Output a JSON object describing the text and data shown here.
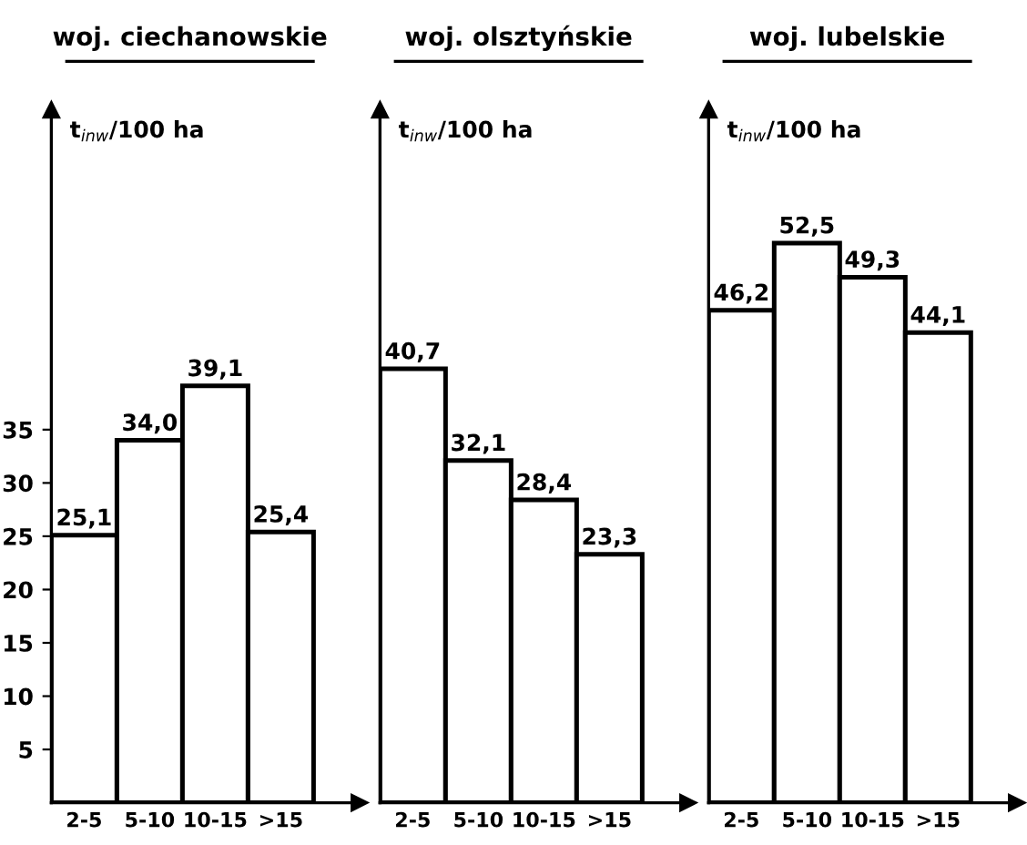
{
  "chart_data": [
    {
      "type": "bar",
      "title": "woj. ciechanowskie",
      "ylabel": "t$_{inw}$/100 ha",
      "categories": [
        "2-5",
        "5-10",
        "10-15",
        ">15"
      ],
      "values": [
        25.1,
        34.0,
        39.1,
        25.4
      ],
      "value_labels": [
        "25,1",
        "34,0",
        "39,1",
        "25,4"
      ],
      "color": "#ffffff",
      "ylim": [
        0,
        65
      ],
      "yticks": [
        5,
        10,
        15,
        20,
        25,
        30,
        35
      ],
      "grid": false,
      "legend": false
    },
    {
      "type": "bar",
      "title": "woj. olsztyńskie",
      "ylabel": "t$_{inw}$/100 ha",
      "categories": [
        "2-5",
        "5-10",
        "10-15",
        ">15"
      ],
      "values": [
        40.7,
        32.1,
        28.4,
        23.3
      ],
      "value_labels": [
        "40,7",
        "32,1",
        "28,4",
        "23,3"
      ],
      "color": "#ffffff",
      "ylim": [
        0,
        65
      ],
      "tick_labels": "x",
      "grid": false,
      "legend": false
    },
    {
      "type": "bar",
      "title": "woj. lubelskie",
      "ylabel": "t$_{inw}$/100 ha",
      "categories": [
        "2-5",
        "5-10",
        "10-15",
        ">15"
      ],
      "values": [
        46.2,
        52.5,
        49.3,
        44.1
      ],
      "value_labels": [
        "46,2",
        "52,5",
        "49,3",
        "44,1"
      ],
      "color": "#ffffff",
      "ylim": [
        0,
        65
      ],
      "tick_labels": "x",
      "grid": false,
      "legend": false
    }
  ]
}
